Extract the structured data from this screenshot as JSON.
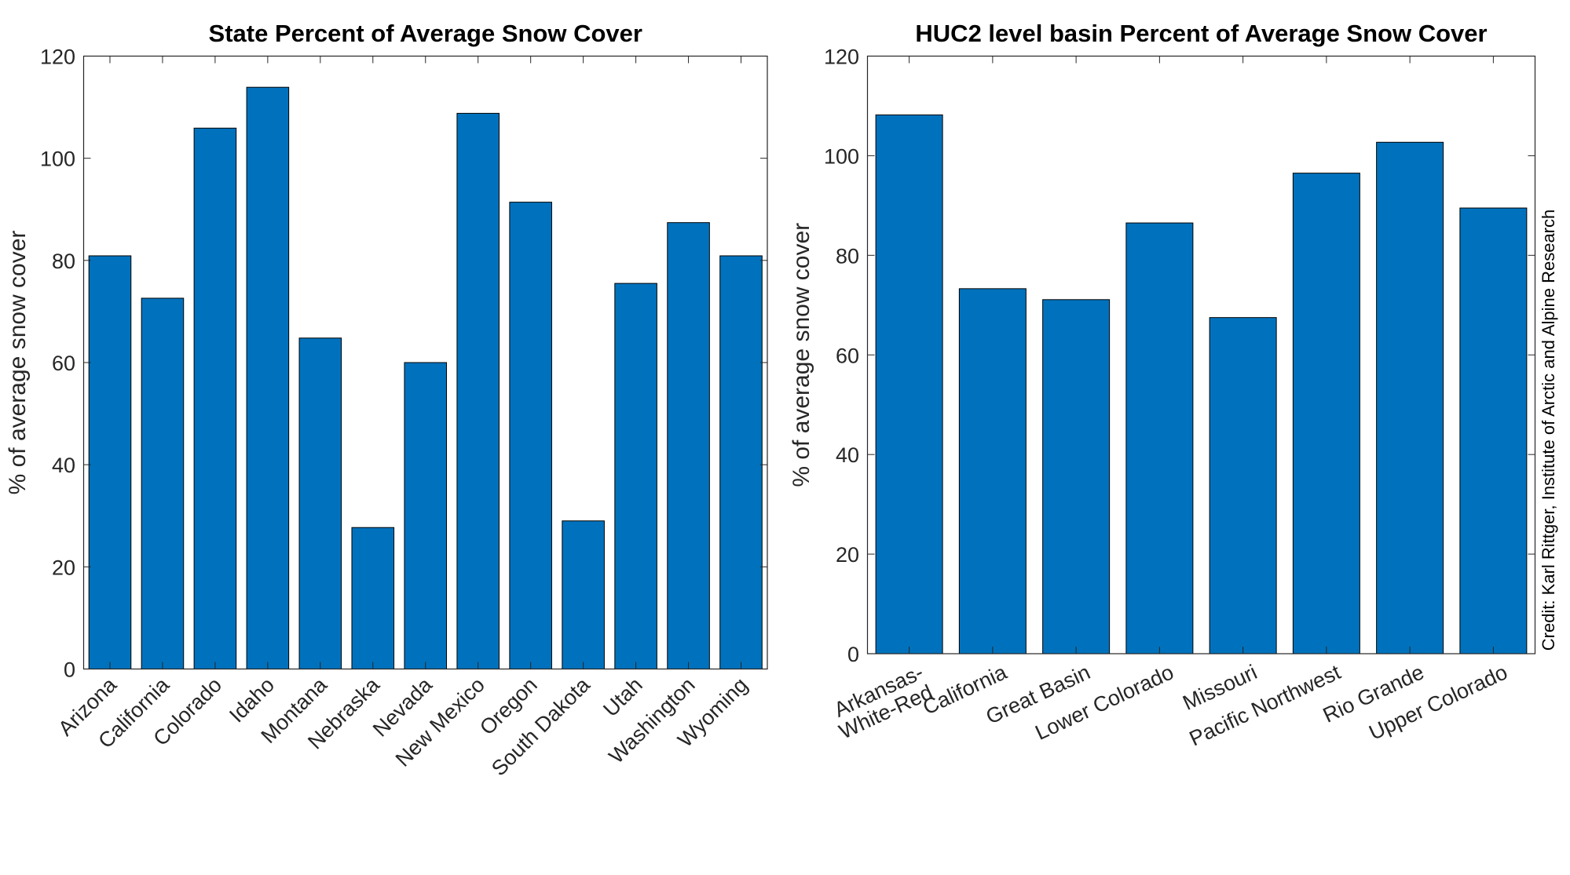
{
  "chart_data": [
    {
      "type": "bar",
      "title": "State Percent of Average Snow Cover",
      "xlabel": "",
      "ylabel": "% of average snow cover",
      "ylim": [
        0,
        120
      ],
      "yticks": [
        0,
        20,
        40,
        60,
        80,
        100,
        120
      ],
      "grid": false,
      "bar_color": "#0072BD",
      "categories": [
        "Arizona",
        "California",
        "Colorado",
        "Idaho",
        "Montana",
        "Nebraska",
        "Nevada",
        "New Mexico",
        "Oregon",
        "South Dakota",
        "Utah",
        "Washington",
        "Wyoming"
      ],
      "values": [
        80.9,
        72.6,
        105.9,
        113.9,
        64.8,
        27.7,
        60.0,
        108.8,
        91.4,
        29.0,
        75.5,
        87.4,
        80.9
      ]
    },
    {
      "type": "bar",
      "title": "HUC2 level basin Percent of Average Snow Cover",
      "xlabel": "",
      "ylabel": "% of average snow cover",
      "ylim": [
        0,
        120
      ],
      "yticks": [
        0,
        20,
        40,
        60,
        80,
        100,
        120
      ],
      "grid": false,
      "bar_color": "#0072BD",
      "categories": [
        "Arkansas-\nWhite-Red",
        "California",
        "Great Basin",
        "Lower Colorado",
        "Missouri",
        "Pacific Northwest",
        "Rio Grande",
        "Upper Colorado"
      ],
      "values": [
        108.2,
        73.3,
        71.1,
        86.5,
        67.5,
        96.5,
        102.7,
        89.5
      ]
    }
  ],
  "credit": "Credit: Karl Rittger, Institute of Arctic and Alpine Research"
}
